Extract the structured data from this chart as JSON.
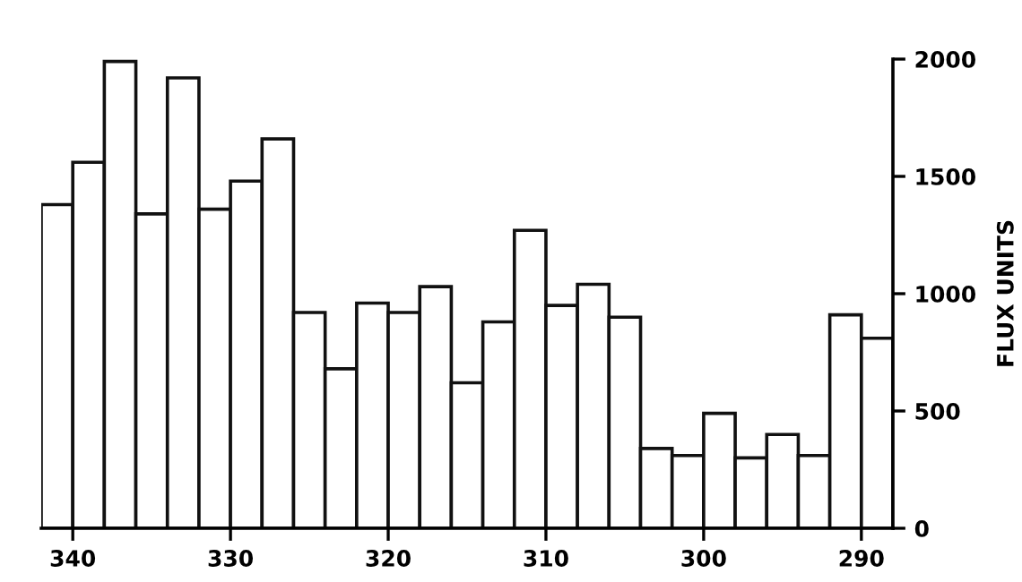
{
  "chart_data": {
    "type": "histogram",
    "ylabel": "FLUX UNITS",
    "bins": [
      342,
      340,
      338,
      336,
      334,
      332,
      330,
      328,
      326,
      324,
      322,
      320,
      318,
      316,
      314,
      312,
      310,
      308,
      306,
      304,
      302,
      300,
      298,
      296,
      294,
      292,
      290,
      288
    ],
    "values": [
      1380,
      1560,
      1990,
      1340,
      1920,
      1360,
      1480,
      1660,
      920,
      680,
      960,
      920,
      1030,
      620,
      880,
      1270,
      950,
      1040,
      900,
      340,
      310,
      490,
      300,
      400,
      310,
      910,
      810
    ],
    "color": "#ffffff",
    "xlim": [
      342,
      288
    ],
    "xticks": [
      340,
      330,
      320,
      310,
      300,
      290
    ],
    "ylim": [
      0,
      2000
    ],
    "yticks": [
      0,
      500,
      1000,
      1500,
      2000
    ],
    "grid": false
  }
}
